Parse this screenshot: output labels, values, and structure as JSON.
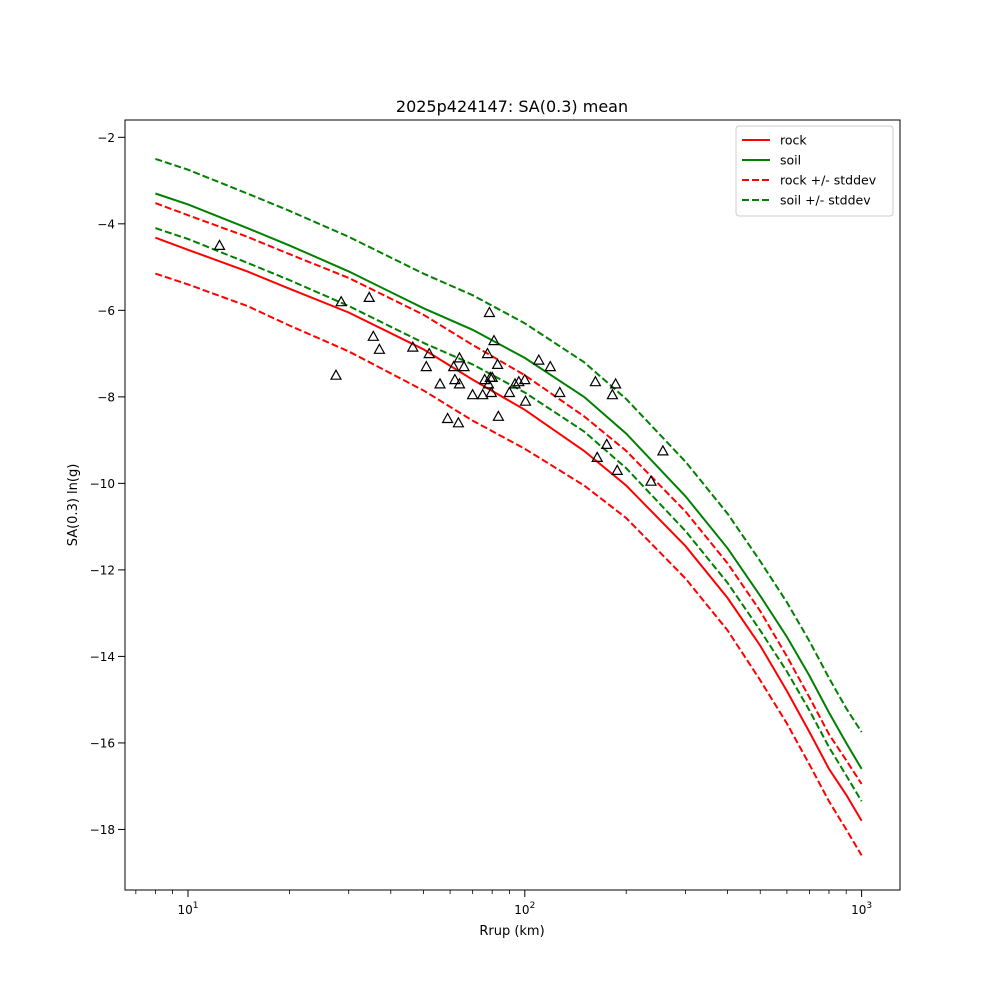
{
  "chart_data": {
    "type": "line",
    "title": "2025p424147: SA(0.3) mean",
    "xlabel": "Rrup (km)",
    "ylabel": "SA(0.3) ln(g)",
    "xscale": "log",
    "xlim": [
      6.5,
      1300
    ],
    "ylim": [
      -19.4,
      -1.6
    ],
    "xticks": [
      {
        "value": 10,
        "base": "10",
        "exp": "1"
      },
      {
        "value": 100,
        "base": "10",
        "exp": "2"
      },
      {
        "value": 1000,
        "base": "10",
        "exp": "3"
      }
    ],
    "yticks": [
      -18,
      -16,
      -14,
      -12,
      -10,
      -8,
      -6,
      -4,
      -2
    ],
    "ytick_labels": [
      "−18",
      "−16",
      "−14",
      "−12",
      "−10",
      "−8",
      "−6",
      "−4",
      "−2"
    ],
    "grid": false,
    "legend_position": "top-right",
    "series": [
      {
        "name": "rock",
        "color": "#ff0000",
        "dash": "solid",
        "x": [
          8,
          10,
          15,
          20,
          30,
          50,
          70,
          100,
          150,
          200,
          300,
          400,
          500,
          600,
          700,
          800,
          900,
          1000
        ],
        "y": [
          -4.32,
          -4.6,
          -5.1,
          -5.5,
          -6.05,
          -6.9,
          -7.6,
          -8.3,
          -9.25,
          -10.05,
          -11.45,
          -12.65,
          -13.75,
          -14.8,
          -15.75,
          -16.6,
          -17.2,
          -17.8
        ]
      },
      {
        "name": "soil",
        "color": "#008000",
        "dash": "solid",
        "x": [
          8,
          10,
          15,
          20,
          30,
          50,
          70,
          100,
          150,
          200,
          300,
          400,
          500,
          600,
          700,
          800,
          900,
          1000
        ],
        "y": [
          -3.3,
          -3.55,
          -4.1,
          -4.5,
          -5.1,
          -5.95,
          -6.45,
          -7.1,
          -8.0,
          -8.85,
          -10.3,
          -11.5,
          -12.6,
          -13.55,
          -14.45,
          -15.3,
          -16.0,
          -16.6
        ]
      },
      {
        "name": "rock +/- stddev",
        "color": "#ff0000",
        "dash": "dashed",
        "x": [
          8,
          10,
          15,
          20,
          30,
          50,
          70,
          100,
          150,
          200,
          300,
          400,
          500,
          600,
          700,
          800,
          900,
          1000
        ],
        "y": [
          -3.52,
          -3.8,
          -4.3,
          -4.7,
          -5.25,
          -6.1,
          -6.8,
          -7.5,
          -8.45,
          -9.25,
          -10.65,
          -11.85,
          -12.95,
          -14.0,
          -14.95,
          -15.8,
          -16.4,
          -16.95
        ]
      },
      {
        "name": "rock +/- stddev",
        "color": "#ff0000",
        "dash": "dashed",
        "legend": false,
        "x": [
          8,
          10,
          15,
          20,
          30,
          50,
          70,
          100,
          150,
          200,
          300,
          400,
          500,
          600,
          700,
          800,
          900,
          1000
        ],
        "y": [
          -5.15,
          -5.4,
          -5.9,
          -6.35,
          -6.95,
          -7.85,
          -8.55,
          -9.2,
          -10.05,
          -10.8,
          -12.2,
          -13.4,
          -14.55,
          -15.55,
          -16.5,
          -17.35,
          -18.0,
          -18.6
        ]
      },
      {
        "name": "soil +/- stddev",
        "color": "#008000",
        "dash": "dashed",
        "x": [
          8,
          10,
          15,
          20,
          30,
          50,
          70,
          100,
          150,
          200,
          300,
          400,
          500,
          600,
          700,
          800,
          900,
          1000
        ],
        "y": [
          -2.5,
          -2.75,
          -3.3,
          -3.7,
          -4.3,
          -5.15,
          -5.65,
          -6.3,
          -7.2,
          -8.05,
          -9.5,
          -10.7,
          -11.8,
          -12.75,
          -13.65,
          -14.5,
          -15.2,
          -15.75
        ]
      },
      {
        "name": "soil +/- stddev",
        "color": "#008000",
        "dash": "dashed",
        "legend": false,
        "x": [
          8,
          10,
          15,
          20,
          30,
          50,
          70,
          100,
          150,
          200,
          300,
          400,
          500,
          600,
          700,
          800,
          900,
          1000
        ],
        "y": [
          -4.1,
          -4.35,
          -4.9,
          -5.3,
          -5.9,
          -6.75,
          -7.25,
          -7.9,
          -8.8,
          -9.65,
          -11.1,
          -12.3,
          -13.4,
          -14.35,
          -15.25,
          -16.1,
          -16.75,
          -17.35
        ]
      }
    ],
    "observations": {
      "marker": "open-triangle",
      "color": "#000000",
      "points": [
        [
          12.4,
          -4.5
        ],
        [
          27.5,
          -7.5
        ],
        [
          28.5,
          -5.8
        ],
        [
          34.5,
          -5.7
        ],
        [
          35.5,
          -6.6
        ],
        [
          37,
          -6.9
        ],
        [
          46.5,
          -6.85
        ],
        [
          51,
          -7.3
        ],
        [
          52,
          -7.0
        ],
        [
          56,
          -7.7
        ],
        [
          59,
          -8.5
        ],
        [
          61.5,
          -7.3
        ],
        [
          62,
          -7.6
        ],
        [
          63.5,
          -8.6
        ],
        [
          64,
          -7.1
        ],
        [
          64,
          -7.7
        ],
        [
          66,
          -7.3
        ],
        [
          70,
          -7.95
        ],
        [
          75,
          -7.95
        ],
        [
          76,
          -7.6
        ],
        [
          77.5,
          -7.0
        ],
        [
          78,
          -7.7
        ],
        [
          78.5,
          -6.05
        ],
        [
          79,
          -7.55
        ],
        [
          79.5,
          -7.9
        ],
        [
          80,
          -7.55
        ],
        [
          81,
          -6.7
        ],
        [
          83,
          -7.25
        ],
        [
          83.5,
          -8.45
        ],
        [
          90,
          -7.9
        ],
        [
          93.5,
          -7.7
        ],
        [
          96,
          -7.65
        ],
        [
          100,
          -7.6
        ],
        [
          100.5,
          -8.1
        ],
        [
          110,
          -7.15
        ],
        [
          119,
          -7.3
        ],
        [
          127,
          -7.9
        ],
        [
          162,
          -7.65
        ],
        [
          164,
          -9.4
        ],
        [
          175,
          -9.1
        ],
        [
          182,
          -7.95
        ],
        [
          186,
          -7.7
        ],
        [
          188,
          -9.7
        ],
        [
          237,
          -9.95
        ],
        [
          257,
          -9.25
        ]
      ]
    }
  }
}
